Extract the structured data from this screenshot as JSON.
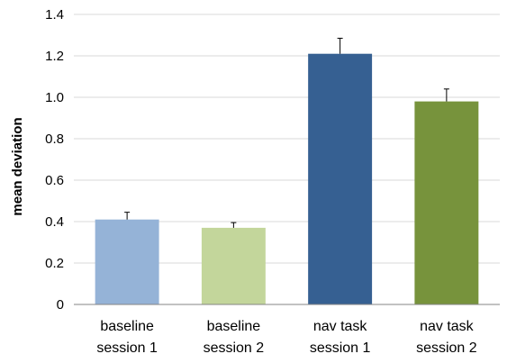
{
  "chart_data": {
    "type": "bar",
    "categories": [
      [
        "baseline",
        "session 1"
      ],
      [
        "baseline",
        "session 2"
      ],
      [
        "nav task",
        "session 1"
      ],
      [
        "nav task",
        "session 2"
      ]
    ],
    "values": [
      0.41,
      0.37,
      1.21,
      0.98
    ],
    "errors": [
      0.035,
      0.025,
      0.075,
      0.06
    ],
    "colors": [
      "#95b3d7",
      "#c3d69b",
      "#366092",
      "#77933c"
    ],
    "title": "",
    "xlabel": "",
    "ylabel": "mean deviation",
    "ylim": [
      0,
      1.4
    ],
    "yticks": [
      0,
      0.2,
      0.4,
      0.6,
      0.8,
      1.0,
      1.2,
      1.4
    ],
    "ytick_labels": [
      "0",
      "0.2",
      "0.4",
      "0.6",
      "0.8",
      "1.0",
      "1.2",
      "1.4"
    ],
    "grid": true,
    "grid_color": "#d9d9d9",
    "axis_color": "#868686"
  }
}
